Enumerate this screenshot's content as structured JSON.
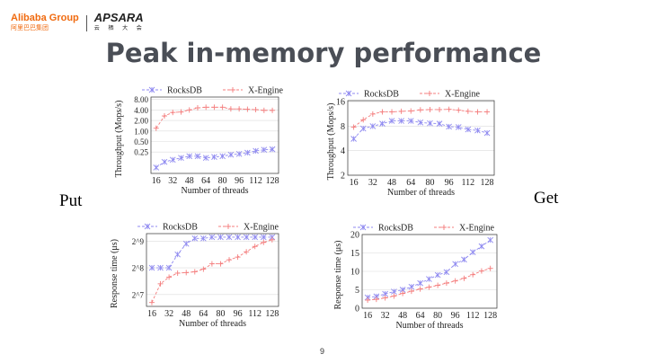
{
  "header": {
    "brand": "Alibaba Group",
    "brand_cn": "阿里巴巴集团",
    "event": "APSARA",
    "event_cn": "云 栖 大 会"
  },
  "title": "Peak in-memory performance",
  "labels": {
    "put": "Put",
    "get": "Get"
  },
  "page_number": "9",
  "colors": {
    "rocksdb": "#8f8af0",
    "xengine": "#f47c7c"
  },
  "chart_data": [
    {
      "id": "put-throughput",
      "type": "line",
      "title": "",
      "xlabel": "Number of threads",
      "ylabel": "Throughput (Mops/s)",
      "yscale": "log2",
      "ylim": [
        0.061,
        9.4
      ],
      "xlim": [
        11,
        134
      ],
      "grid": true,
      "legend": "top",
      "x": [
        16,
        24,
        32,
        40,
        48,
        56,
        64,
        72,
        80,
        88,
        96,
        104,
        112,
        120,
        128
      ],
      "xticks": [
        16,
        32,
        48,
        64,
        80,
        96,
        112,
        128
      ],
      "xtick_labels": [
        "16",
        "32",
        "48",
        "64",
        "80",
        "96",
        "112",
        "128"
      ],
      "yticks": [
        0.25,
        0.5,
        1,
        2,
        4,
        8
      ],
      "ytick_labels": [
        "0.25",
        "0.50",
        "1.00",
        "2.00",
        "4.00",
        "8.00"
      ],
      "series": [
        {
          "name": "RocksDB",
          "values": [
            0.09,
            0.13,
            0.15,
            0.17,
            0.19,
            0.19,
            0.17,
            0.18,
            0.19,
            0.21,
            0.22,
            0.24,
            0.27,
            0.29,
            0.3
          ]
        },
        {
          "name": "X-Engine",
          "values": [
            1.2,
            2.7,
            3.4,
            3.5,
            4.0,
            4.6,
            4.8,
            4.8,
            4.8,
            4.3,
            4.3,
            4.2,
            4.1,
            3.9,
            3.9
          ]
        }
      ]
    },
    {
      "id": "get-throughput",
      "type": "line",
      "title": "",
      "xlabel": "Number of threads",
      "ylabel": "Throughput (Mops/s)",
      "yscale": "log2",
      "ylim": [
        2,
        16.5
      ],
      "xlim": [
        11,
        134
      ],
      "grid": true,
      "legend": "top",
      "x": [
        16,
        24,
        32,
        40,
        48,
        56,
        64,
        72,
        80,
        88,
        96,
        104,
        112,
        120,
        128
      ],
      "xticks": [
        16,
        32,
        48,
        64,
        80,
        96,
        112,
        128
      ],
      "xtick_labels": [
        "16",
        "32",
        "48",
        "64",
        "80",
        "96",
        "112",
        "128"
      ],
      "yticks": [
        2,
        4,
        8,
        16
      ],
      "ytick_labels": [
        "2",
        "4",
        "8",
        "16"
      ],
      "series": [
        {
          "name": "RocksDB",
          "values": [
            5.6,
            7.5,
            8.0,
            8.6,
            9.3,
            9.3,
            9.3,
            8.9,
            8.7,
            8.6,
            7.9,
            7.8,
            7.3,
            7.1,
            6.6
          ]
        },
        {
          "name": "X-Engine",
          "values": [
            7.8,
            9.6,
            11.3,
            12,
            12,
            12.2,
            12.3,
            12.7,
            12.8,
            12.8,
            12.9,
            12.6,
            12.2,
            12,
            12
          ]
        }
      ]
    },
    {
      "id": "put-response",
      "type": "line",
      "title": "",
      "xlabel": "Number of threads",
      "ylabel": "Response time (μs)",
      "yscale": "log2",
      "ylim": [
        94,
        622
      ],
      "xlim": [
        11,
        134
      ],
      "grid": true,
      "legend": "top",
      "x": [
        16,
        24,
        32,
        40,
        48,
        56,
        64,
        72,
        80,
        88,
        96,
        104,
        112,
        120,
        128
      ],
      "xticks": [
        16,
        32,
        48,
        64,
        80,
        96,
        112,
        128
      ],
      "xtick_labels": [
        "16",
        "32",
        "48",
        "64",
        "80",
        "96",
        "112",
        "128"
      ],
      "yticks": [
        128,
        256,
        512
      ],
      "ytick_labels": [
        "2^7",
        "2^8",
        "2^9"
      ],
      "series": [
        {
          "name": "RocksDB",
          "values": [
            256,
            256,
            256,
            362,
            478,
            549,
            549,
            568,
            568,
            568,
            568,
            568,
            568,
            568,
            568
          ]
        },
        {
          "name": "X-Engine",
          "values": [
            104,
            169,
            201,
            223,
            226,
            231,
            247,
            284,
            284,
            315,
            338,
            388,
            446,
            495,
            530
          ]
        }
      ]
    },
    {
      "id": "get-response",
      "type": "line",
      "title": "",
      "xlabel": "Number of threads",
      "ylabel": "Response time (μs)",
      "yscale": "linear",
      "ylim": [
        0,
        20
      ],
      "xlim": [
        11,
        134
      ],
      "grid": true,
      "legend": "top",
      "x": [
        16,
        24,
        32,
        40,
        48,
        56,
        64,
        72,
        80,
        88,
        96,
        104,
        112,
        120,
        128
      ],
      "xticks": [
        16,
        32,
        48,
        64,
        80,
        96,
        112,
        128
      ],
      "xtick_labels": [
        "16",
        "32",
        "48",
        "64",
        "80",
        "96",
        "112",
        "128"
      ],
      "yticks": [
        0,
        5,
        10,
        15,
        20
      ],
      "ytick_labels": [
        "0",
        "5",
        "10",
        "15",
        "20"
      ],
      "series": [
        {
          "name": "RocksDB",
          "values": [
            2.9,
            3.2,
            3.9,
            4.5,
            5.0,
            5.8,
            6.8,
            7.9,
            9.0,
            9.8,
            12,
            13.2,
            15.2,
            16.8,
            18.5
          ]
        },
        {
          "name": "X-Engine",
          "values": [
            2.2,
            2.4,
            2.8,
            3.3,
            4.0,
            4.6,
            5.2,
            5.7,
            6.2,
            6.8,
            7.4,
            8.1,
            9.1,
            10.1,
            10.8
          ]
        }
      ]
    }
  ]
}
